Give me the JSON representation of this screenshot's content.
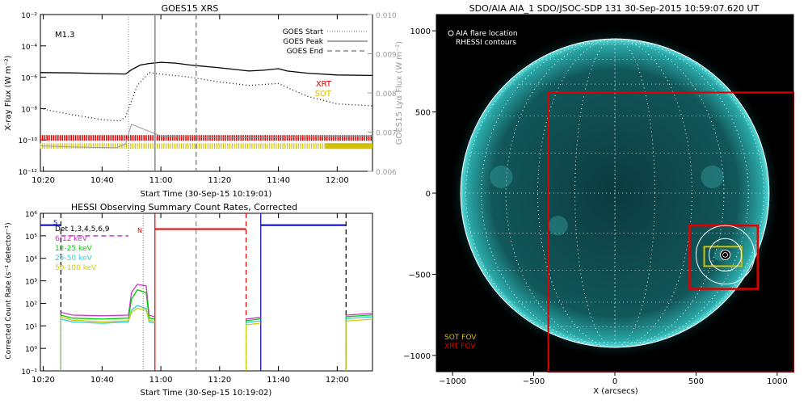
{
  "colors": {
    "xrt": "#e00000",
    "sot": "#d4c000",
    "goes_grey": "#999999",
    "hessi_6_12": "#cc33cc",
    "hessi_12_25": "#00cc00",
    "hessi_25_50": "#33ccdd",
    "hessi_50_100": "#cccc00",
    "hessi_att": "#0000aa",
    "disk": "#1a8c8c"
  },
  "chart_data": [
    {
      "id": "goes",
      "type": "line",
      "title": "GOES15 XRS",
      "xlabel": "Start Time (30-Sep-15 10:19:01)",
      "ylabel": "X-ray Flux (W m⁻²)",
      "y2label": "GOES15 Lyα Flux (W m⁻²)",
      "xlim": [
        "10:19:01",
        "12:12"
      ],
      "xticks": [
        "10:20",
        "10:40",
        "11:00",
        "11:20",
        "11:40",
        "12:00"
      ],
      "ylim": [
        1e-12,
        0.01
      ],
      "yscale": "log",
      "yticks": [
        "10⁻¹²",
        "10⁻¹⁰",
        "10⁻⁸",
        "10⁻⁶",
        "10⁻⁴",
        "10⁻²"
      ],
      "y2lim": [
        0.006,
        0.01
      ],
      "y2ticks": [
        "0.006",
        "0.007",
        "0.008",
        "0.009",
        "0.010"
      ],
      "flare_class": "M1.3",
      "goes_markers": {
        "start": "10:49",
        "peak": "10:58",
        "end": "11:12"
      },
      "legend": [
        "GOES Start",
        "GOES Peak",
        "GOES End"
      ],
      "legend_position": "top-right",
      "instrument_labels": [
        "XRT",
        "SOT"
      ],
      "series": [
        {
          "id": "long",
          "x": [
            "10:19",
            "10:30",
            "10:40",
            "10:48",
            "10:50",
            "10:53",
            "10:56",
            "11:00",
            "11:05",
            "11:10",
            "11:20",
            "11:30",
            "11:35",
            "11:40",
            "11:43",
            "11:50",
            "12:00",
            "12:12"
          ],
          "y": [
            2e-06,
            1.9e-06,
            1.7e-06,
            1.6e-06,
            3e-06,
            6e-06,
            7.5e-06,
            9e-06,
            8e-06,
            6e-06,
            4e-06,
            2.5e-06,
            2.8e-06,
            3.5e-06,
            2.5e-06,
            1.8e-06,
            1.4e-06,
            1.3e-06
          ]
        },
        {
          "id": "short",
          "x": [
            "10:19",
            "10:30",
            "10:40",
            "10:46",
            "10:48",
            "10:52",
            "10:56",
            "11:00",
            "11:10",
            "11:20",
            "11:30",
            "11:40",
            "11:45",
            "11:50",
            "12:00",
            "12:12"
          ],
          "y": [
            1e-08,
            4e-09,
            2e-09,
            1.6e-09,
            3e-09,
            3e-07,
            2e-06,
            1.6e-06,
            1e-06,
            5e-07,
            3e-07,
            4e-07,
            1.5e-07,
            6e-08,
            2e-08,
            1.5e-08
          ]
        },
        {
          "id": "lya",
          "x": [
            "10:19",
            "10:30",
            "10:45",
            "10:48",
            "10:50",
            "11:00",
            "11:20",
            "11:40",
            "12:00",
            "12:12"
          ],
          "y": [
            0.00665,
            0.00662,
            0.0066,
            0.0067,
            0.0072,
            0.0069,
            0.00685,
            0.00686,
            0.0069,
            0.0069
          ]
        }
      ]
    },
    {
      "id": "hessi",
      "type": "line",
      "title": "HESSI Observing Summary Count Rates, Corrected",
      "xlabel": "Start Time (30-Sep-15 10:19:02)",
      "ylabel": "Corrected Count Rate (s⁻¹ detector⁻¹)",
      "xlim": [
        "10:19:02",
        "12:12"
      ],
      "xticks": [
        "10:20",
        "10:40",
        "11:00",
        "11:20",
        "11:40",
        "12:00"
      ],
      "ylim": [
        0.1,
        1000000.0
      ],
      "yscale": "log",
      "yticks": [
        "10⁻¹",
        "10⁰",
        "10¹",
        "10²",
        "10³",
        "10⁴",
        "10⁵",
        "10⁶"
      ],
      "det_label": "Det 1,3,4,5,6,9",
      "legend": [
        "6-12 keV",
        "12-25 keV",
        "25-50 keV",
        "50-100 keV"
      ],
      "state_labels": [
        "S",
        "N"
      ],
      "markers": [
        "10:26",
        "10:54",
        "10:58",
        "11:12",
        "11:29",
        "11:34",
        "12:03"
      ],
      "series": [
        {
          "name": "6-12 keV",
          "x": [
            "10:26",
            "10:30",
            "10:40",
            "10:49",
            "10:50",
            "10:52",
            "10:55",
            "10:56",
            "10:58"
          ],
          "y": [
            40,
            30,
            28,
            30,
            300,
            700,
            600,
            30,
            25
          ]
        },
        {
          "name": "12-25 keV",
          "x": [
            "10:26",
            "10:30",
            "10:40",
            "10:49",
            "10:50",
            "10:52",
            "10:55",
            "10:56",
            "10:58"
          ],
          "y": [
            30,
            22,
            20,
            22,
            150,
            400,
            300,
            22,
            20
          ]
        },
        {
          "name": "25-50 keV",
          "x": [
            "10:26",
            "10:30",
            "10:40",
            "10:49",
            "10:50",
            "10:52",
            "10:55",
            "10:56",
            "10:58"
          ],
          "y": [
            20,
            15,
            13,
            15,
            50,
            80,
            60,
            15,
            13
          ]
        },
        {
          "name": "50-100 keV",
          "x": [
            "10:26",
            "10:30",
            "10:40",
            "10:49",
            "10:50",
            "10:52",
            "10:55",
            "10:56",
            "10:58"
          ],
          "y": [
            25,
            18,
            15,
            17,
            40,
            60,
            50,
            18,
            15
          ]
        }
      ],
      "attenuator": [
        {
          "x": [
            "10:19",
            "10:26"
          ],
          "y": [
            300000.0,
            300000.0
          ]
        },
        {
          "x": [
            "10:58",
            "11:29"
          ],
          "y": [
            200000.0,
            200000.0
          ]
        },
        {
          "x": [
            "11:34",
            "12:03"
          ],
          "y": [
            300000.0,
            300000.0
          ]
        }
      ]
    },
    {
      "id": "aia",
      "type": "image",
      "title": "SDO/AIA AIA_1 SDO/JSOC-SDP 131 30-Sep-2015 10:59:07.620 UT",
      "xlabel": "X (arcsecs)",
      "xlim": [
        -1100,
        1100
      ],
      "ylim": [
        -1100,
        1100
      ],
      "xticks": [
        "−1000",
        "−500",
        "0",
        "500",
        "1000"
      ],
      "yticks": [
        "−1000",
        "−500",
        "0",
        "500",
        "1000"
      ],
      "legend": [
        "AIA flare location",
        "RHESSI contours"
      ],
      "fov_labels": [
        "SOT FOV",
        "XRT FOV"
      ],
      "solar_radius_arcsec": 950,
      "xrt_fov_arcsec": [
        -410,
        -1100,
        1100,
        620
      ],
      "flare_box_arcsec": [
        460,
        -590,
        880,
        -200
      ],
      "sot_fov_arcsec": [
        550,
        -450,
        780,
        -330
      ],
      "flare_center_arcsec": [
        680,
        -380
      ]
    }
  ]
}
